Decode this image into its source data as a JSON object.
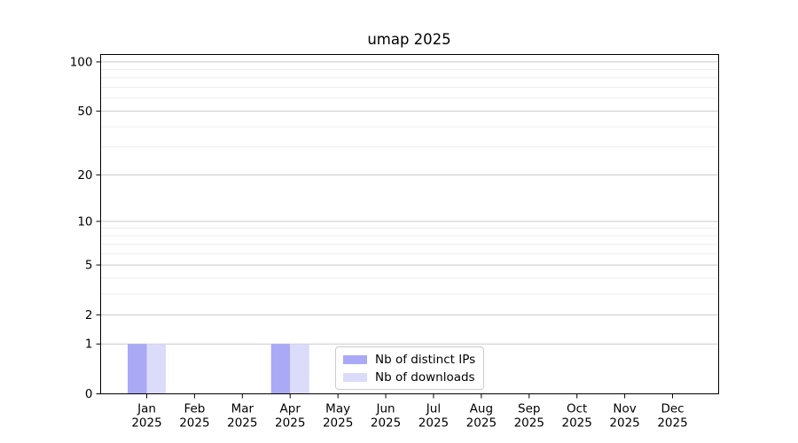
{
  "title": "umap 2025",
  "chart_data": {
    "type": "bar",
    "title": "umap 2025",
    "categories": [
      {
        "month": "Jan",
        "year": "2025"
      },
      {
        "month": "Feb",
        "year": "2025"
      },
      {
        "month": "Mar",
        "year": "2025"
      },
      {
        "month": "Apr",
        "year": "2025"
      },
      {
        "month": "May",
        "year": "2025"
      },
      {
        "month": "Jun",
        "year": "2025"
      },
      {
        "month": "Jul",
        "year": "2025"
      },
      {
        "month": "Aug",
        "year": "2025"
      },
      {
        "month": "Sep",
        "year": "2025"
      },
      {
        "month": "Oct",
        "year": "2025"
      },
      {
        "month": "Nov",
        "year": "2025"
      },
      {
        "month": "Dec",
        "year": "2025"
      }
    ],
    "series": [
      {
        "name": "Nb of distinct IPs",
        "color": "#a9a9f5",
        "values": [
          1,
          0,
          0,
          1,
          0,
          0,
          0,
          0,
          0,
          0,
          0,
          0
        ]
      },
      {
        "name": "Nb of downloads",
        "color": "#dbdbfa",
        "values": [
          1,
          0,
          0,
          1,
          0,
          0,
          0,
          0,
          0,
          0,
          0,
          0
        ]
      }
    ],
    "yscale": "log1p",
    "ylim": [
      0,
      111
    ],
    "yticks": [
      0,
      1,
      2,
      5,
      10,
      20,
      50,
      100
    ],
    "minor_yticks": [
      3,
      4,
      6,
      7,
      8,
      9,
      30,
      40,
      60,
      70,
      80,
      90
    ],
    "grid": "horizontal",
    "legend_position": "lower center",
    "xlabel": "",
    "ylabel": ""
  },
  "colors": {
    "major_grid": "#c9c9c9",
    "minor_grid": "#ededed",
    "axis": "#000000",
    "text": "#000000",
    "legend_border": "#cccccc"
  }
}
